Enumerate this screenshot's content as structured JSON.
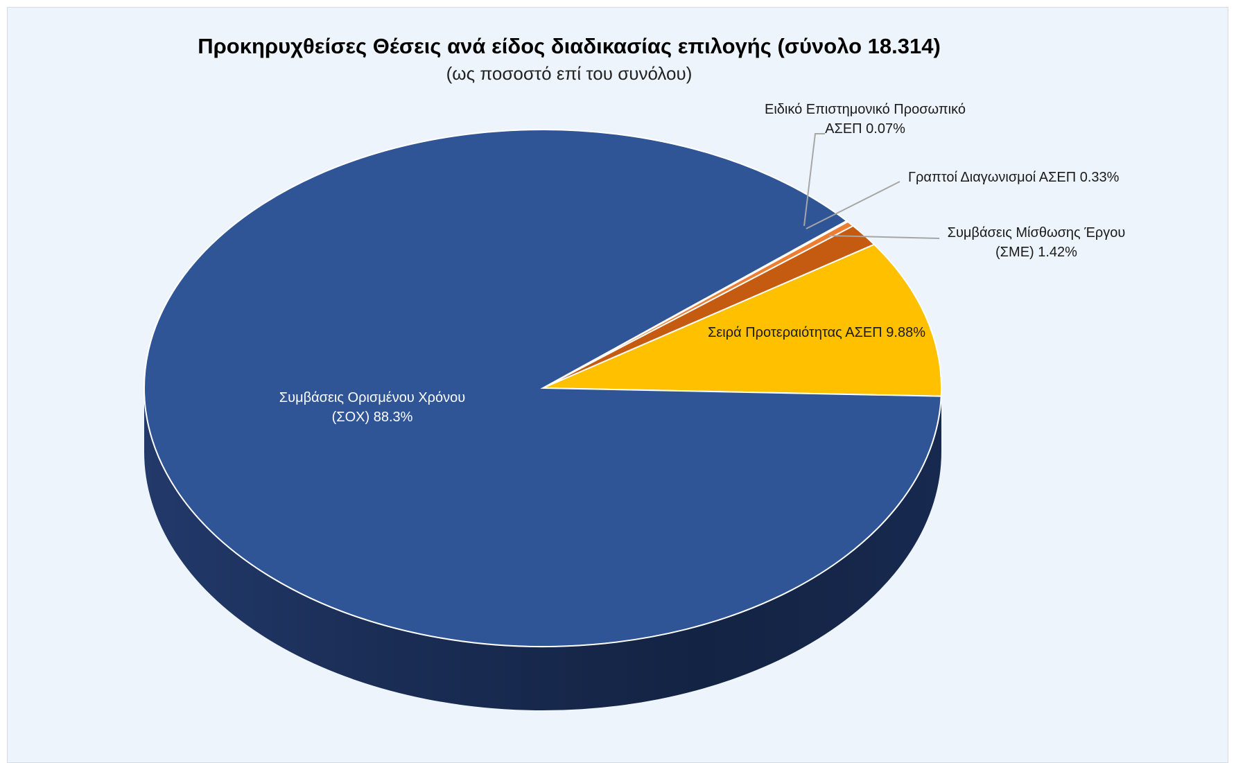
{
  "chart_data": {
    "type": "pie",
    "title": "Προκηρυχθείσες Θέσεις ανά είδος διαδικασίας επιλογής (σύνολο 18.314)",
    "subtitle": "(ως ποσοστό επί του συνόλου)",
    "slices": [
      {
        "label_lines": [
          "Σειρά Προτεραιότητας ΑΣΕΠ 9.88%"
        ],
        "value": 9.88,
        "color": "#ffc000"
      },
      {
        "label_lines": [
          "Συμβάσεις Μίσθωσης Έργου",
          "(ΣΜΕ) 1.42%"
        ],
        "value": 1.42,
        "color": "#c55a11"
      },
      {
        "label_lines": [
          "Γραπτοί Διαγωνισμοί ΑΣΕΠ 0.33%"
        ],
        "value": 0.33,
        "color": "#ed7d31"
      },
      {
        "label_lines": [
          "Ειδικό Επιστημονικό Προσωπικό",
          "ΑΣΕΠ 0.07%"
        ],
        "value": 0.07,
        "color": "#a5a5a5"
      },
      {
        "label_lines": [
          "Συμβάσεις Ορισμένου Χρόνου",
          "(ΣΟΧ) 88.3%"
        ],
        "value": 88.3,
        "color": "#2f5597"
      }
    ]
  }
}
